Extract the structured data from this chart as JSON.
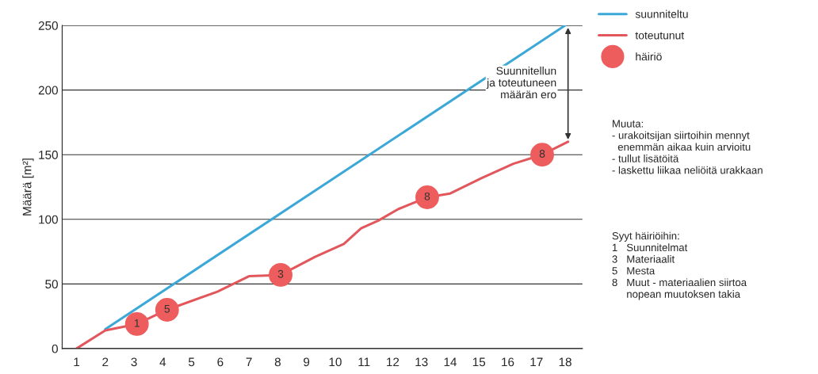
{
  "chart_data": {
    "type": "line",
    "ylabel": "Määrä [m²]",
    "xlim": [
      0.5,
      18.6
    ],
    "xticks": [
      1,
      2,
      3,
      4,
      5,
      6,
      7,
      8,
      9,
      10,
      11,
      12,
      13,
      14,
      15,
      16,
      17,
      18
    ],
    "ylim": [
      0,
      250
    ],
    "yticks": [
      0,
      50,
      100,
      150,
      200,
      250
    ],
    "grid": "y",
    "legend": "top right",
    "marker": "none",
    "line_style": "solid",
    "series": [
      {
        "name": "suunniteltu",
        "color": "#3ba8d8",
        "x": [
          2,
          18
        ],
        "values": [
          15,
          250
        ]
      },
      {
        "name": "toteutunut",
        "color": "#e2575c",
        "x": [
          1,
          2,
          3.1,
          4.15,
          5.9,
          7,
          7.6,
          8.1,
          9.3,
          10.3,
          10.9,
          11.5,
          12.2,
          13.2,
          14,
          15.1,
          16.2,
          17.2,
          18.1
        ],
        "values": [
          0,
          14,
          19,
          30,
          44,
          56,
          56.5,
          57,
          71,
          81,
          93,
          99,
          108,
          117,
          120,
          132,
          143,
          150,
          160
        ]
      },
      {
        "name": "häiriö",
        "type": "scatter",
        "marker": "circle",
        "color": "#ee5d5d",
        "x": [
          3.1,
          4.15,
          8.1,
          13.2,
          17.2
        ],
        "values": [
          19,
          30,
          57,
          117,
          150
        ]
      }
    ],
    "annotations": [
      {
        "text": "1",
        "x": 3.1,
        "y": 19
      },
      {
        "text": "5",
        "x": 4.15,
        "y": 30
      },
      {
        "text": "3",
        "x": 8.1,
        "y": 57
      },
      {
        "text": "8",
        "x": 13.2,
        "y": 117
      },
      {
        "text": "8",
        "x": 17.2,
        "y": 150
      },
      "Suunnitellun\nja toteutuneen\nmäärän ero",
      "Muuta:\n- urakoitsijan siirtoihin mennyt\n  enemmän aikaa kuin arvioitu\n- tullut lisätöitä\n- laskettu liikaa neliöitä urakkaan",
      "Syyt häiriöihin:\n1   Suunnitelmat\n3   Materiaalit\n5   Mesta\n8   Muut - materiaalien siirtoa\n     nopean muutoksen takia"
    ]
  }
}
